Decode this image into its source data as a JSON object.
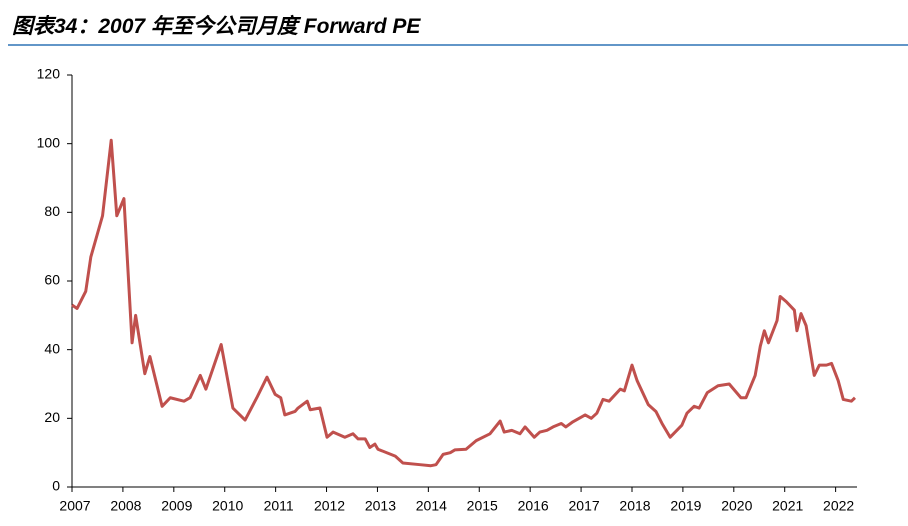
{
  "chart_data": {
    "type": "line",
    "title": "图表34：2007 年至今公司月度 Forward PE",
    "x": [
      2007.0,
      2007.1,
      2007.27,
      2007.37,
      2007.6,
      2007.77,
      2007.88,
      2008.02,
      2008.18,
      2008.25,
      2008.43,
      2008.53,
      2008.77,
      2008.93,
      2009.2,
      2009.32,
      2009.52,
      2009.63,
      2009.93,
      2010.16,
      2010.4,
      2010.63,
      2010.83,
      2010.99,
      2011.1,
      2011.18,
      2011.38,
      2011.44,
      2011.62,
      2011.68,
      2011.87,
      2012.01,
      2012.13,
      2012.36,
      2012.52,
      2012.62,
      2012.76,
      2012.85,
      2012.95,
      2013.01,
      2013.35,
      2013.5,
      2013.84,
      2014.05,
      2014.15,
      2014.29,
      2014.43,
      2014.52,
      2014.74,
      2014.94,
      2015.21,
      2015.41,
      2015.49,
      2015.64,
      2015.8,
      2015.9,
      2016.08,
      2016.19,
      2016.33,
      2016.45,
      2016.61,
      2016.7,
      2016.84,
      2017.08,
      2017.2,
      2017.31,
      2017.43,
      2017.55,
      2017.77,
      2017.85,
      2018.0,
      2018.1,
      2018.32,
      2018.47,
      2018.59,
      2018.75,
      2018.98,
      2019.08,
      2019.22,
      2019.32,
      2019.48,
      2019.69,
      2019.91,
      2020.14,
      2020.24,
      2020.42,
      2020.52,
      2020.6,
      2020.68,
      2020.85,
      2020.91,
      2021.03,
      2021.19,
      2021.24,
      2021.32,
      2021.42,
      2021.58,
      2021.68,
      2021.82,
      2021.92,
      2022.05,
      2022.15,
      2022.31,
      2022.38
    ],
    "series": [
      {
        "name": "Forward PE",
        "color": "#c0504d",
        "values": [
          53,
          52,
          57,
          67,
          79,
          101,
          79,
          84,
          42,
          50,
          33,
          38,
          23.5,
          26,
          25,
          26,
          32.5,
          28.5,
          41.5,
          23,
          19.5,
          26,
          32,
          27,
          26,
          21,
          22,
          23,
          25,
          22.5,
          23,
          14.5,
          16,
          14.5,
          15.5,
          14,
          14,
          11.5,
          12.5,
          11,
          9,
          7,
          6.5,
          6.2,
          6.5,
          9.5,
          10,
          10.8,
          11,
          13.5,
          15.5,
          19.2,
          16,
          16.5,
          15.5,
          17.5,
          14.5,
          16,
          16.5,
          17.5,
          18.5,
          17.5,
          19,
          21,
          20,
          21.5,
          25.5,
          25,
          28.5,
          28,
          35.5,
          31,
          24,
          22,
          18.5,
          14.5,
          18,
          21.5,
          23.5,
          23,
          27.5,
          29.5,
          30,
          26,
          26,
          32.5,
          41,
          45.5,
          42,
          48.5,
          55.5,
          54,
          51.5,
          45.5,
          50.5,
          47,
          32.5,
          35.5,
          35.5,
          36,
          31,
          25.5,
          25,
          26
        ]
      }
    ],
    "xlim": [
      2007,
      2022.42
    ],
    "xticks": [
      2007,
      2008,
      2009,
      2010,
      2011,
      2012,
      2013,
      2014,
      2015,
      2016,
      2017,
      2018,
      2019,
      2020,
      2021,
      2022
    ],
    "ylim": [
      0,
      120
    ],
    "yticks": [
      0,
      20,
      40,
      60,
      80,
      100,
      120
    ]
  }
}
